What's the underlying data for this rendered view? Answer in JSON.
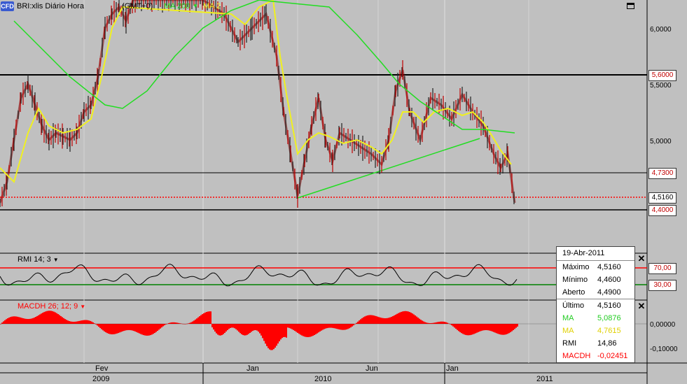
{
  "header": {
    "logo": "CFD",
    "symbol": "BRI:xlis Diário Hora",
    "timezone": "(GMT+0)",
    "ma200_label": "MA 200",
    "ma20_label": "MA 2"
  },
  "price_axis": {
    "ticks": [
      "6,0000",
      "5,5000",
      "5,0000"
    ],
    "levels": [
      "5,6000",
      "4,7300",
      "4,5160",
      "4,4000"
    ]
  },
  "rmi": {
    "title": "RMI 14; 3",
    "levels": [
      "70,00",
      "30,00"
    ]
  },
  "macdh": {
    "title": "MACDH 26; 12; 9",
    "ticks": [
      "0,00000",
      "-0,10000"
    ]
  },
  "x_axis": {
    "months": [
      "Fev",
      "Jan",
      "Jun",
      "Jan"
    ],
    "years": [
      "2009",
      "2010",
      "2011"
    ]
  },
  "tooltip": {
    "date": "19-Abr-2011",
    "rows": [
      {
        "label": "Máximo",
        "value": "4,5160"
      },
      {
        "label": "Mínimo",
        "value": "4,4600"
      },
      {
        "label": "Aberto",
        "value": "4,4900"
      },
      {
        "label": "Último",
        "value": "4,5160"
      },
      {
        "label": "MA",
        "value": "5,0876"
      },
      {
        "label": "MA",
        "value": "4,7615"
      },
      {
        "label": "RMI",
        "value": "14,86"
      },
      {
        "label": "MACDH",
        "value": "-0,02451"
      }
    ]
  },
  "colors": {
    "ma200": "#22dd22",
    "ma20": "#f0f020",
    "candle_up": "#ffffff",
    "candle_down": "#c00000",
    "resistance": "#ff0000",
    "macd": "#ff0000",
    "background": "#c0c0c0"
  }
}
